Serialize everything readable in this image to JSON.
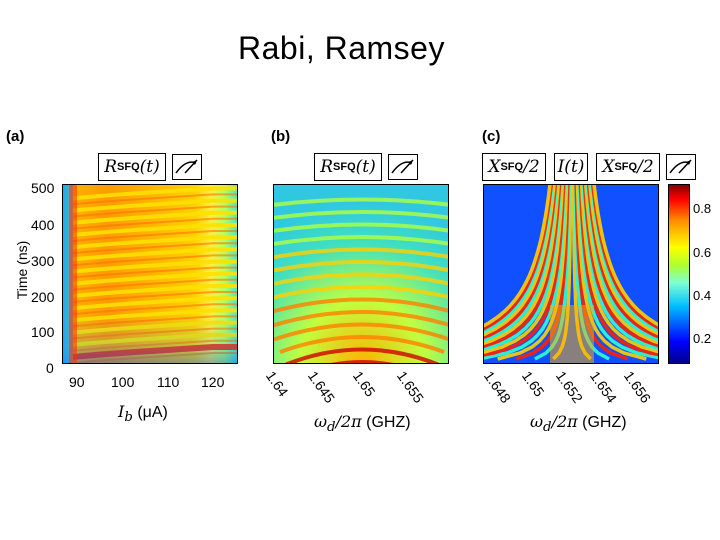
{
  "slide": {
    "title": "Rabi, Ramsey"
  },
  "panels": [
    {
      "label": "(a)",
      "pulse_sequence": [
        "R_SFQ(t)"
      ],
      "xlabel": "I_b (μA)",
      "ylabel": "Time (ns)",
      "xticks": [
        "90",
        "100",
        "110",
        "120"
      ],
      "yticks": [
        "0",
        "100",
        "200",
        "300",
        "400",
        "500"
      ]
    },
    {
      "label": "(b)",
      "pulse_sequence": [
        "R_SFQ(t)"
      ],
      "xlabel": "ω_d/2π (GHZ)",
      "xticks": [
        "1.64",
        "1.645",
        "1.65",
        "1.655"
      ]
    },
    {
      "label": "(c)",
      "pulse_sequence": [
        "X_SFQ/2",
        "I(t)",
        "X_SFQ/2"
      ],
      "xlabel": "ω_d/2π (GHZ)",
      "xticks": [
        "1.648",
        "1.65",
        "1.652",
        "1.654",
        "1.656"
      ]
    }
  ],
  "colorbar": {
    "ticks": [
      "0.8",
      "0.6",
      "0.4",
      "0.2"
    ]
  },
  "labels": {
    "r": "R",
    "sfq": "SFQ",
    "t_arg": "(t)",
    "x": "X",
    "half": "/2",
    "i_t": "I(t)",
    "ib_sym": "I",
    "ib_sub": "b",
    "ib_unit": " (μA)",
    "omega": "ω",
    "omega_sub": "d",
    "omega_rest": "/2π",
    "ghz": " (GHZ)"
  }
}
